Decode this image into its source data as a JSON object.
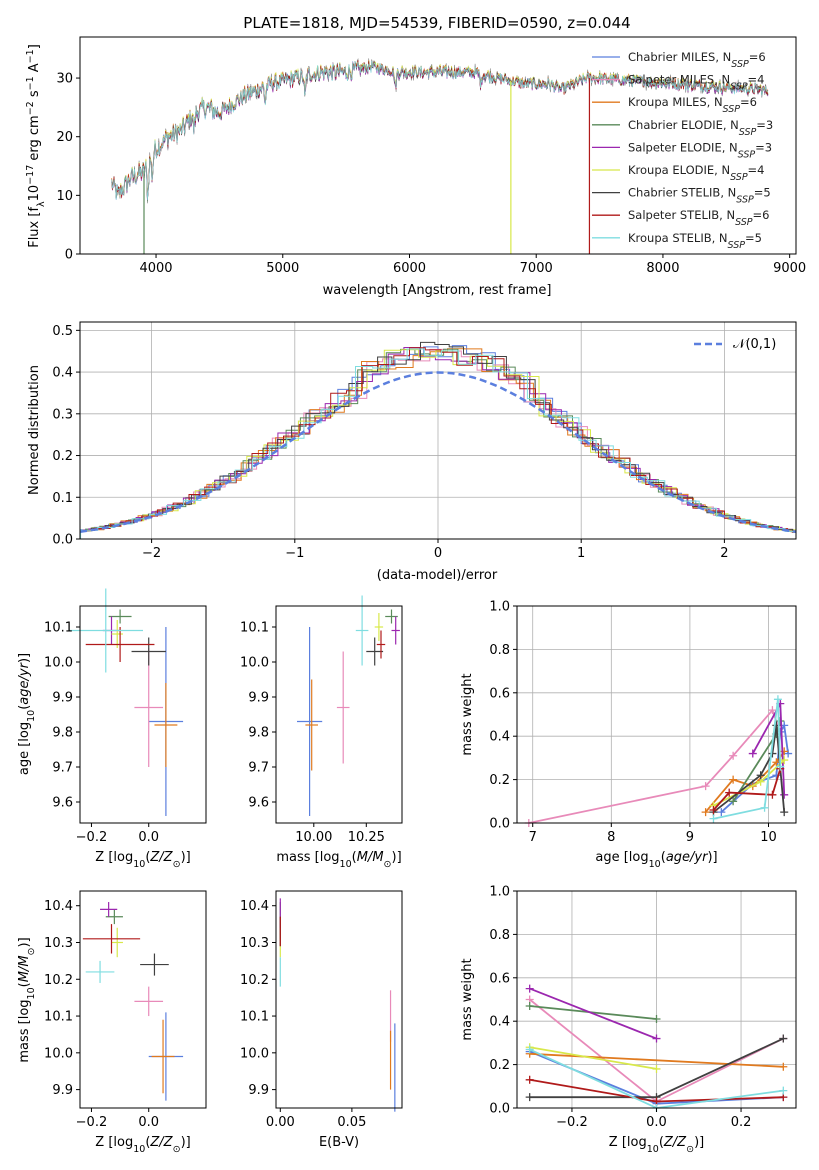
{
  "chart_data": [
    {
      "type": "line",
      "title": "PLATE=1818, MJD=54539, FIBERID=0590, z=0.044",
      "xlabel": "wavelength [Angstrom, rest frame]",
      "ylabel": "Flux [f_λ10^-17 erg cm^-2 s^-1 A^-1]",
      "xlim": [
        3400,
        9050
      ],
      "ylim": [
        0,
        37
      ],
      "xticks": [
        4000,
        5000,
        6000,
        7000,
        8000,
        9000
      ],
      "yticks": [
        0,
        10,
        20,
        30
      ],
      "grid": false,
      "legend_position": "right",
      "series": [
        {
          "name": "Chabrier MILES, N_SSP=6",
          "color": "#5b7fde"
        },
        {
          "name": "Salpeter MILES, N_SSP=4",
          "color": "#e88ab9"
        },
        {
          "name": "Kroupa MILES, N_SSP=6",
          "color": "#e07a1f"
        },
        {
          "name": "Chabrier ELODIE, N_SSP=3",
          "color": "#5a8a5a"
        },
        {
          "name": "Salpeter ELODIE, N_SSP=3",
          "color": "#9b27af"
        },
        {
          "name": "Kroupa ELODIE, N_SSP=4",
          "color": "#d8e84a"
        },
        {
          "name": "Chabrier STELIB, N_SSP=5",
          "color": "#404040"
        },
        {
          "name": "Salpeter STELIB, N_SSP=6",
          "color": "#b01a1a"
        },
        {
          "name": "Kroupa STELIB, N_SSP=5",
          "color": "#7fdde0"
        }
      ],
      "spectrum_anchor": {
        "x": [
          3650,
          3700,
          3800,
          3900,
          4000,
          4100,
          4200,
          4300,
          4400,
          4500,
          4700,
          4900,
          5100,
          5300,
          5500,
          5700,
          5900,
          6100,
          6300,
          6500,
          6700,
          6900,
          7100,
          7200,
          7300,
          7400,
          7450
        ],
        "y": [
          12,
          10,
          13,
          14,
          18,
          20,
          21,
          24,
          25,
          24,
          27,
          29,
          30,
          31,
          31,
          32,
          31,
          31,
          31,
          31,
          30,
          29,
          29,
          28,
          29,
          30,
          30
        ]
      }
    },
    {
      "type": "line",
      "title": "",
      "xlabel": "(data-model)/error",
      "ylabel": "Normed distribution",
      "xlim": [
        -2.5,
        2.5
      ],
      "ylim": [
        0,
        0.52
      ],
      "xticks": [
        -2,
        -1,
        0,
        1,
        2
      ],
      "yticks": [
        0.0,
        0.1,
        0.2,
        0.3,
        0.4,
        0.5
      ],
      "grid": true,
      "legend_position": "top-right",
      "legend_label": "𝒩(0,1)",
      "series": [
        {
          "name": "𝒩(0,1)",
          "style": "dashed",
          "color": "#5b7fde"
        }
      ]
    },
    {
      "type": "scatter",
      "xlabel": "Z [log10(Z/Z⊙)]",
      "ylabel": "age [log10(age/yr)]",
      "xlim": [
        -0.24,
        0.2
      ],
      "ylim": [
        9.54,
        10.16
      ],
      "xticks": [
        -0.2,
        0.0
      ],
      "yticks": [
        9.6,
        9.7,
        9.8,
        9.9,
        10.0,
        10.1
      ],
      "points": [
        {
          "x": 0.06,
          "y": 9.83,
          "xerr": 0.06,
          "yerr": 0.27,
          "color": "#5b7fde"
        },
        {
          "x": 0.0,
          "y": 9.87,
          "xerr": 0.05,
          "yerr": 0.17,
          "color": "#e88ab9"
        },
        {
          "x": 0.06,
          "y": 9.82,
          "xerr": 0.04,
          "yerr": 0.12,
          "color": "#e07a1f"
        },
        {
          "x": -0.1,
          "y": 10.13,
          "xerr": 0.04,
          "yerr": 0.02,
          "color": "#5a8a5a"
        },
        {
          "x": -0.13,
          "y": 10.09,
          "xerr": 0.03,
          "yerr": 0.04,
          "color": "#9b27af"
        },
        {
          "x": -0.11,
          "y": 10.08,
          "xerr": 0.02,
          "yerr": 0.04,
          "color": "#d8e84a"
        },
        {
          "x": 0.0,
          "y": 10.03,
          "xerr": 0.06,
          "yerr": 0.04,
          "color": "#404040"
        },
        {
          "x": -0.1,
          "y": 10.05,
          "xerr": 0.12,
          "yerr": 0.05,
          "color": "#b01a1a"
        },
        {
          "x": -0.15,
          "y": 10.09,
          "xerr": 0.13,
          "yerr": 0.12,
          "color": "#7fdde0"
        }
      ]
    },
    {
      "type": "scatter",
      "xlabel": "mass [log10(M/M⊙)]",
      "ylabel": "",
      "xlim": [
        9.82,
        10.42
      ],
      "ylim": [
        9.54,
        10.16
      ],
      "xticks": [
        10.0,
        10.25
      ],
      "yticks": [
        9.6,
        9.7,
        9.8,
        9.9,
        10.0,
        10.1
      ],
      "points": [
        {
          "x": 9.98,
          "y": 9.83,
          "xerr": 0.06,
          "yerr": 0.27,
          "color": "#5b7fde"
        },
        {
          "x": 10.14,
          "y": 9.87,
          "xerr": 0.03,
          "yerr": 0.16,
          "color": "#e88ab9"
        },
        {
          "x": 9.99,
          "y": 9.82,
          "xerr": 0.03,
          "yerr": 0.13,
          "color": "#e07a1f"
        },
        {
          "x": 10.37,
          "y": 10.13,
          "xerr": 0.03,
          "yerr": 0.02,
          "color": "#5a8a5a"
        },
        {
          "x": 10.39,
          "y": 10.09,
          "xerr": 0.02,
          "yerr": 0.04,
          "color": "#9b27af"
        },
        {
          "x": 10.31,
          "y": 10.1,
          "xerr": 0.02,
          "yerr": 0.04,
          "color": "#d8e84a"
        },
        {
          "x": 10.29,
          "y": 10.03,
          "xerr": 0.04,
          "yerr": 0.04,
          "color": "#404040"
        },
        {
          "x": 10.32,
          "y": 10.05,
          "xerr": 0.02,
          "yerr": 0.04,
          "color": "#b01a1a"
        },
        {
          "x": 10.23,
          "y": 10.09,
          "xerr": 0.03,
          "yerr": 0.1,
          "color": "#7fdde0"
        }
      ]
    },
    {
      "type": "line",
      "xlabel": "age [log10(age/yr)]",
      "ylabel": "mass weight",
      "xlim": [
        6.8,
        10.35
      ],
      "ylim": [
        0.0,
        1.0
      ],
      "xticks": [
        7,
        8,
        9,
        10
      ],
      "yticks": [
        0.0,
        0.2,
        0.4,
        0.6,
        0.8,
        1.0
      ],
      "grid": true,
      "series": [
        {
          "name": "Chabrier MILES",
          "color": "#5b7fde",
          "x": [
            9.4,
            9.8,
            10.1,
            10.15,
            10.2,
            10.25
          ],
          "y": [
            0.05,
            0.18,
            0.22,
            0.42,
            0.45,
            0.32
          ]
        },
        {
          "name": "Salpeter MILES",
          "color": "#e88ab9",
          "x": [
            6.95,
            9.2,
            9.55,
            10.05,
            10.12
          ],
          "y": [
            0.0,
            0.17,
            0.31,
            0.52,
            0.45
          ]
        },
        {
          "name": "Kroupa MILES",
          "color": "#e07a1f",
          "x": [
            9.2,
            9.55,
            9.8,
            10.1,
            10.2
          ],
          "y": [
            0.05,
            0.2,
            0.17,
            0.28,
            0.33
          ]
        },
        {
          "name": "Chabrier ELODIE",
          "color": "#5a8a5a",
          "x": [
            9.55,
            10.1,
            10.15
          ],
          "y": [
            0.1,
            0.41,
            0.47
          ]
        },
        {
          "name": "Salpeter ELODIE",
          "color": "#9b27af",
          "x": [
            9.8,
            10.15,
            10.2
          ],
          "y": [
            0.32,
            0.55,
            0.13
          ]
        },
        {
          "name": "Kroupa ELODIE",
          "color": "#d8e84a",
          "x": [
            9.3,
            9.9,
            10.2
          ],
          "y": [
            0.08,
            0.19,
            0.29
          ]
        },
        {
          "name": "Chabrier STELIB",
          "color": "#404040",
          "x": [
            9.3,
            9.9,
            10.05,
            10.1,
            10.2
          ],
          "y": [
            0.05,
            0.22,
            0.32,
            0.45,
            0.05
          ]
        },
        {
          "name": "Salpeter STELIB",
          "color": "#b01a1a",
          "x": [
            9.3,
            9.5,
            10.05,
            10.15
          ],
          "y": [
            0.06,
            0.14,
            0.13,
            0.25
          ]
        },
        {
          "name": "Kroupa STELIB",
          "color": "#7fdde0",
          "x": [
            9.3,
            9.95,
            10.12,
            10.15
          ],
          "y": [
            0.02,
            0.07,
            0.57,
            0.26
          ]
        }
      ]
    },
    {
      "type": "scatter",
      "xlabel": "Z [log10(Z/Z⊙)]",
      "ylabel": "mass [log10(M/M⊙)]",
      "xlim": [
        -0.24,
        0.2
      ],
      "ylim": [
        9.85,
        10.44
      ],
      "xticks": [
        -0.2,
        0.0
      ],
      "yticks": [
        9.9,
        10.0,
        10.1,
        10.2,
        10.3,
        10.4
      ],
      "points": [
        {
          "x": 0.06,
          "y": 9.99,
          "xerr": 0.06,
          "yerr": 0.12,
          "color": "#5b7fde"
        },
        {
          "x": 0.0,
          "y": 10.14,
          "xerr": 0.05,
          "yerr": 0.04,
          "color": "#e88ab9"
        },
        {
          "x": 0.05,
          "y": 9.99,
          "xerr": 0.04,
          "yerr": 0.1,
          "color": "#e07a1f"
        },
        {
          "x": -0.12,
          "y": 10.37,
          "xerr": 0.03,
          "yerr": 0.02,
          "color": "#5a8a5a"
        },
        {
          "x": -0.14,
          "y": 10.39,
          "xerr": 0.03,
          "yerr": 0.02,
          "color": "#9b27af"
        },
        {
          "x": -0.11,
          "y": 10.3,
          "xerr": 0.02,
          "yerr": 0.04,
          "color": "#d8e84a"
        },
        {
          "x": 0.02,
          "y": 10.24,
          "xerr": 0.05,
          "yerr": 0.03,
          "color": "#404040"
        },
        {
          "x": -0.13,
          "y": 10.31,
          "xerr": 0.1,
          "yerr": 0.04,
          "color": "#b01a1a"
        },
        {
          "x": -0.17,
          "y": 10.22,
          "xerr": 0.05,
          "yerr": 0.03,
          "color": "#7fdde0"
        }
      ]
    },
    {
      "type": "scatter",
      "xlabel": "E(B-V)",
      "ylabel": "",
      "xlim": [
        -0.003,
        0.085
      ],
      "ylim": [
        9.85,
        10.44
      ],
      "xticks": [
        0.0,
        0.05
      ],
      "yticks": [
        9.9,
        10.0,
        10.1,
        10.2,
        10.3,
        10.4
      ],
      "points": [
        {
          "x": 0.08,
          "y": 9.96,
          "yerr": 0.12,
          "color": "#5b7fde"
        },
        {
          "x": 0.077,
          "y": 10.1,
          "yerr": 0.07,
          "color": "#e88ab9"
        },
        {
          "x": 0.077,
          "y": 9.98,
          "yerr": 0.08,
          "color": "#e07a1f"
        },
        {
          "x": 0.0,
          "y": 10.36,
          "yerr": 0.05,
          "color": "#5a8a5a"
        },
        {
          "x": 0.0,
          "y": 10.37,
          "yerr": 0.05,
          "color": "#9b27af"
        },
        {
          "x": 0.0,
          "y": 10.3,
          "yerr": 0.04,
          "color": "#d8e84a"
        },
        {
          "x": 0.0,
          "y": 10.33,
          "yerr": 0.04,
          "color": "#404040"
        },
        {
          "x": 0.0,
          "y": 10.33,
          "yerr": 0.04,
          "color": "#b01a1a"
        },
        {
          "x": 0.0,
          "y": 10.22,
          "yerr": 0.04,
          "color": "#7fdde0"
        }
      ]
    },
    {
      "type": "line",
      "xlabel": "Z [log10(Z/Z⊙)]",
      "ylabel": "mass weight",
      "xlim": [
        -0.33,
        0.33
      ],
      "ylim": [
        0.0,
        1.0
      ],
      "xticks": [
        -0.2,
        0.0,
        0.2
      ],
      "yticks": [
        0.0,
        0.2,
        0.4,
        0.6,
        0.8,
        1.0
      ],
      "grid": true,
      "series": [
        {
          "name": "Chabrier MILES",
          "color": "#5b7fde",
          "x": [
            -0.3,
            0.0,
            0.3
          ],
          "y": [
            0.26,
            0.02,
            0.05
          ]
        },
        {
          "name": "Salpeter MILES",
          "color": "#e88ab9",
          "x": [
            -0.3,
            0.0,
            0.3
          ],
          "y": [
            0.5,
            0.03,
            0.32
          ]
        },
        {
          "name": "Kroupa MILES",
          "color": "#e07a1f",
          "x": [
            -0.3,
            0.3
          ],
          "y": [
            0.25,
            0.19
          ]
        },
        {
          "name": "Chabrier ELODIE",
          "color": "#5a8a5a",
          "x": [
            -0.3,
            0.0
          ],
          "y": [
            0.47,
            0.41
          ]
        },
        {
          "name": "Salpeter ELODIE",
          "color": "#9b27af",
          "x": [
            -0.3,
            0.0
          ],
          "y": [
            0.55,
            0.32
          ]
        },
        {
          "name": "Kroupa ELODIE",
          "color": "#d8e84a",
          "x": [
            -0.3,
            0.0
          ],
          "y": [
            0.28,
            0.18
          ]
        },
        {
          "name": "Chabrier STELIB",
          "color": "#404040",
          "x": [
            -0.3,
            0.0,
            0.3
          ],
          "y": [
            0.05,
            0.05,
            0.32
          ]
        },
        {
          "name": "Salpeter STELIB",
          "color": "#b01a1a",
          "x": [
            -0.3,
            0.0,
            0.3
          ],
          "y": [
            0.13,
            0.03,
            0.05
          ]
        },
        {
          "name": "Kroupa STELIB",
          "color": "#7fdde0",
          "x": [
            -0.3,
            0.0,
            0.3
          ],
          "y": [
            0.27,
            0.0,
            0.08
          ]
        }
      ]
    }
  ]
}
